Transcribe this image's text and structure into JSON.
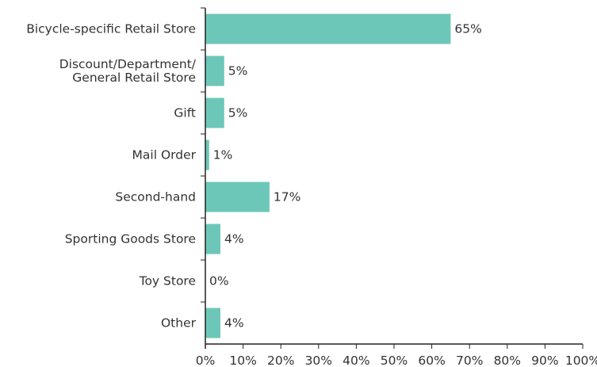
{
  "chart_data": {
    "type": "bar",
    "orientation": "horizontal",
    "categories": [
      [
        "Bicycle-specific Retail Store"
      ],
      [
        "Discount/Department/",
        "General Retail Store"
      ],
      [
        "Gift"
      ],
      [
        "Mail Order"
      ],
      [
        "Second-hand"
      ],
      [
        "Sporting Goods Store"
      ],
      [
        "Toy Store"
      ],
      [
        "Other"
      ]
    ],
    "values": [
      65,
      5,
      5,
      1,
      17,
      4,
      0,
      4
    ],
    "value_labels": [
      "65%",
      "5%",
      "5%",
      "1%",
      "17%",
      "4%",
      "0%",
      "4%"
    ],
    "xlim": [
      0,
      100
    ],
    "x_ticks": [
      0,
      10,
      20,
      30,
      40,
      50,
      60,
      70,
      80,
      90,
      100
    ],
    "x_tick_labels": [
      "0%",
      "10%",
      "20%",
      "30%",
      "40%",
      "50%",
      "60%",
      "70%",
      "80%",
      "90%",
      "100%"
    ],
    "grid": false,
    "bar_color": "#6dc7b8",
    "axis_color": "#222222",
    "text_color": "#333333"
  }
}
